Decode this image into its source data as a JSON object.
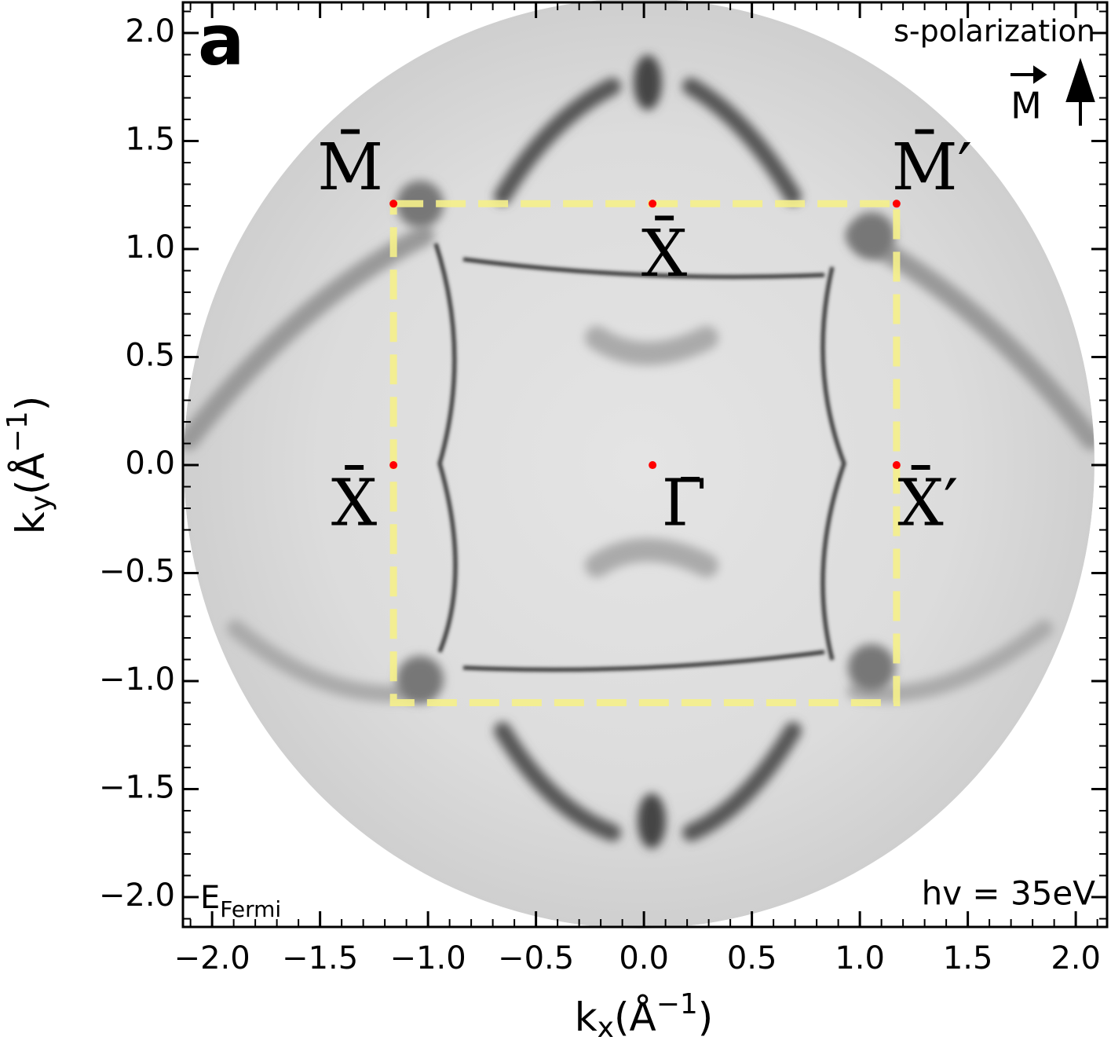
{
  "chart_data": {
    "type": "scatter",
    "panel_label": "a",
    "polarization": "s-polarization",
    "magnetization": "M",
    "energy": [
      "E",
      "Fermi"
    ],
    "photon_energy": "hv = 35eV",
    "xlabel": [
      "k",
      "x",
      "(Å",
      "−1",
      ")"
    ],
    "ylabel": [
      "k",
      "y",
      "(Å",
      "−1",
      ")"
    ],
    "xlim": [
      -2.135,
      2.145
    ],
    "ylim": [
      -2.138,
      2.142
    ],
    "xticks": [
      {
        "value": -2,
        "label": "−2.0"
      },
      {
        "value": -1.5,
        "label": "−1.5"
      },
      {
        "value": -1,
        "label": "−1.0"
      },
      {
        "value": -0.5,
        "label": "−0.5"
      },
      {
        "value": 0,
        "label": "0.0"
      },
      {
        "value": 0.5,
        "label": "0.5"
      },
      {
        "value": 1,
        "label": "1.0"
      },
      {
        "value": 1.5,
        "label": "1.5"
      },
      {
        "value": 2,
        "label": "2.0"
      }
    ],
    "yticks": [
      {
        "value": -2,
        "label": "−2.0"
      },
      {
        "value": -1.5,
        "label": "−1.5"
      },
      {
        "value": -1,
        "label": "−1.0"
      },
      {
        "value": -0.5,
        "label": "−0.5"
      },
      {
        "value": 0,
        "label": "0.0"
      },
      {
        "value": 0.5,
        "label": "0.5"
      },
      {
        "value": 1,
        "label": "1.0"
      },
      {
        "value": 1.5,
        "label": "1.5"
      },
      {
        "value": 2,
        "label": "2.0"
      }
    ],
    "points": {
      "color": "#ff0000",
      "x": [
        -1.16,
        0.04,
        1.17,
        -1.16,
        0.04,
        1.17
      ],
      "y": [
        1.21,
        1.21,
        1.21,
        0,
        0,
        0
      ],
      "labels": [
        "M̄",
        "X̄",
        "M̄′",
        "X̄",
        "Γ̄",
        "X̄′"
      ]
    },
    "zone": {
      "color": "#f5f08a",
      "x": [
        -1.16,
        1.17,
        1.17,
        -1.16
      ],
      "y": [
        1.21,
        1.21,
        -1.1,
        -1.1
      ]
    }
  }
}
